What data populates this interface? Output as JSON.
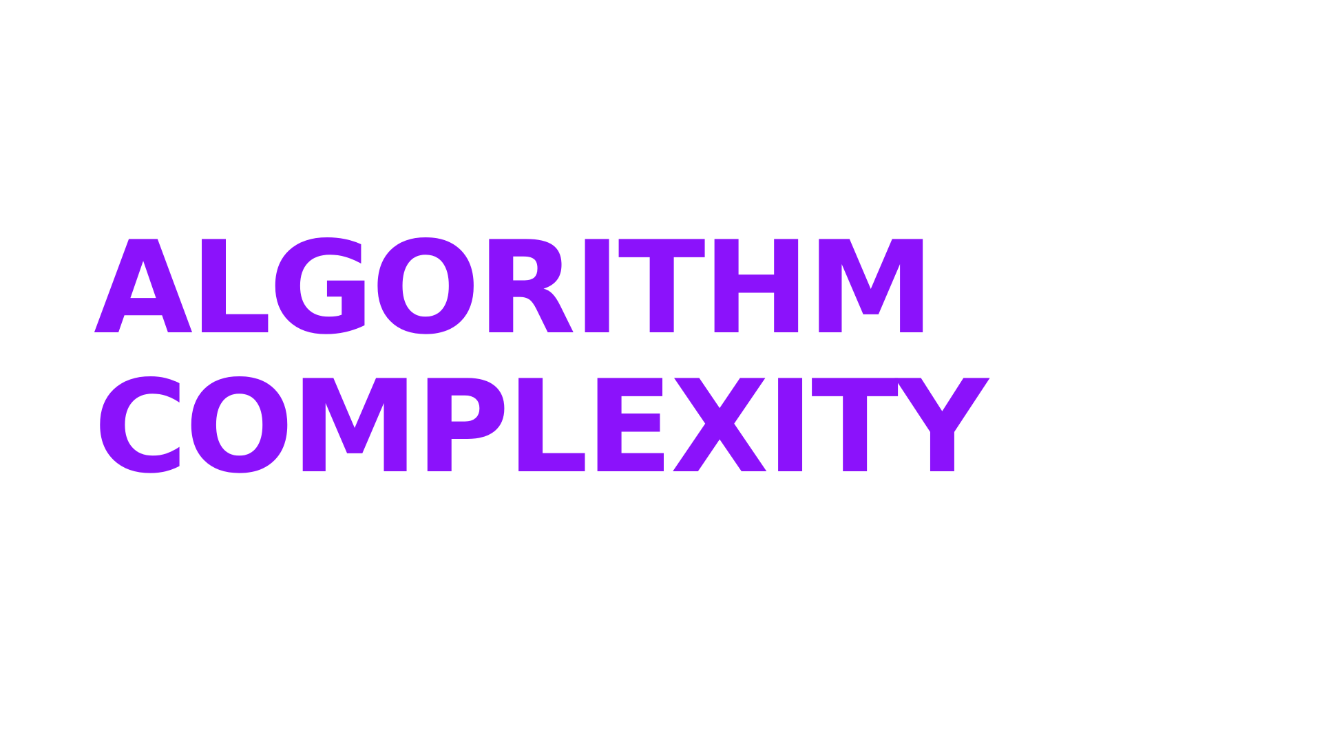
{
  "slide": {
    "title_lines": [
      "ALGORITHM",
      "COMPLEXITY"
    ]
  },
  "colors": {
    "background": "#ffffff",
    "title": "#8b12fb"
  }
}
